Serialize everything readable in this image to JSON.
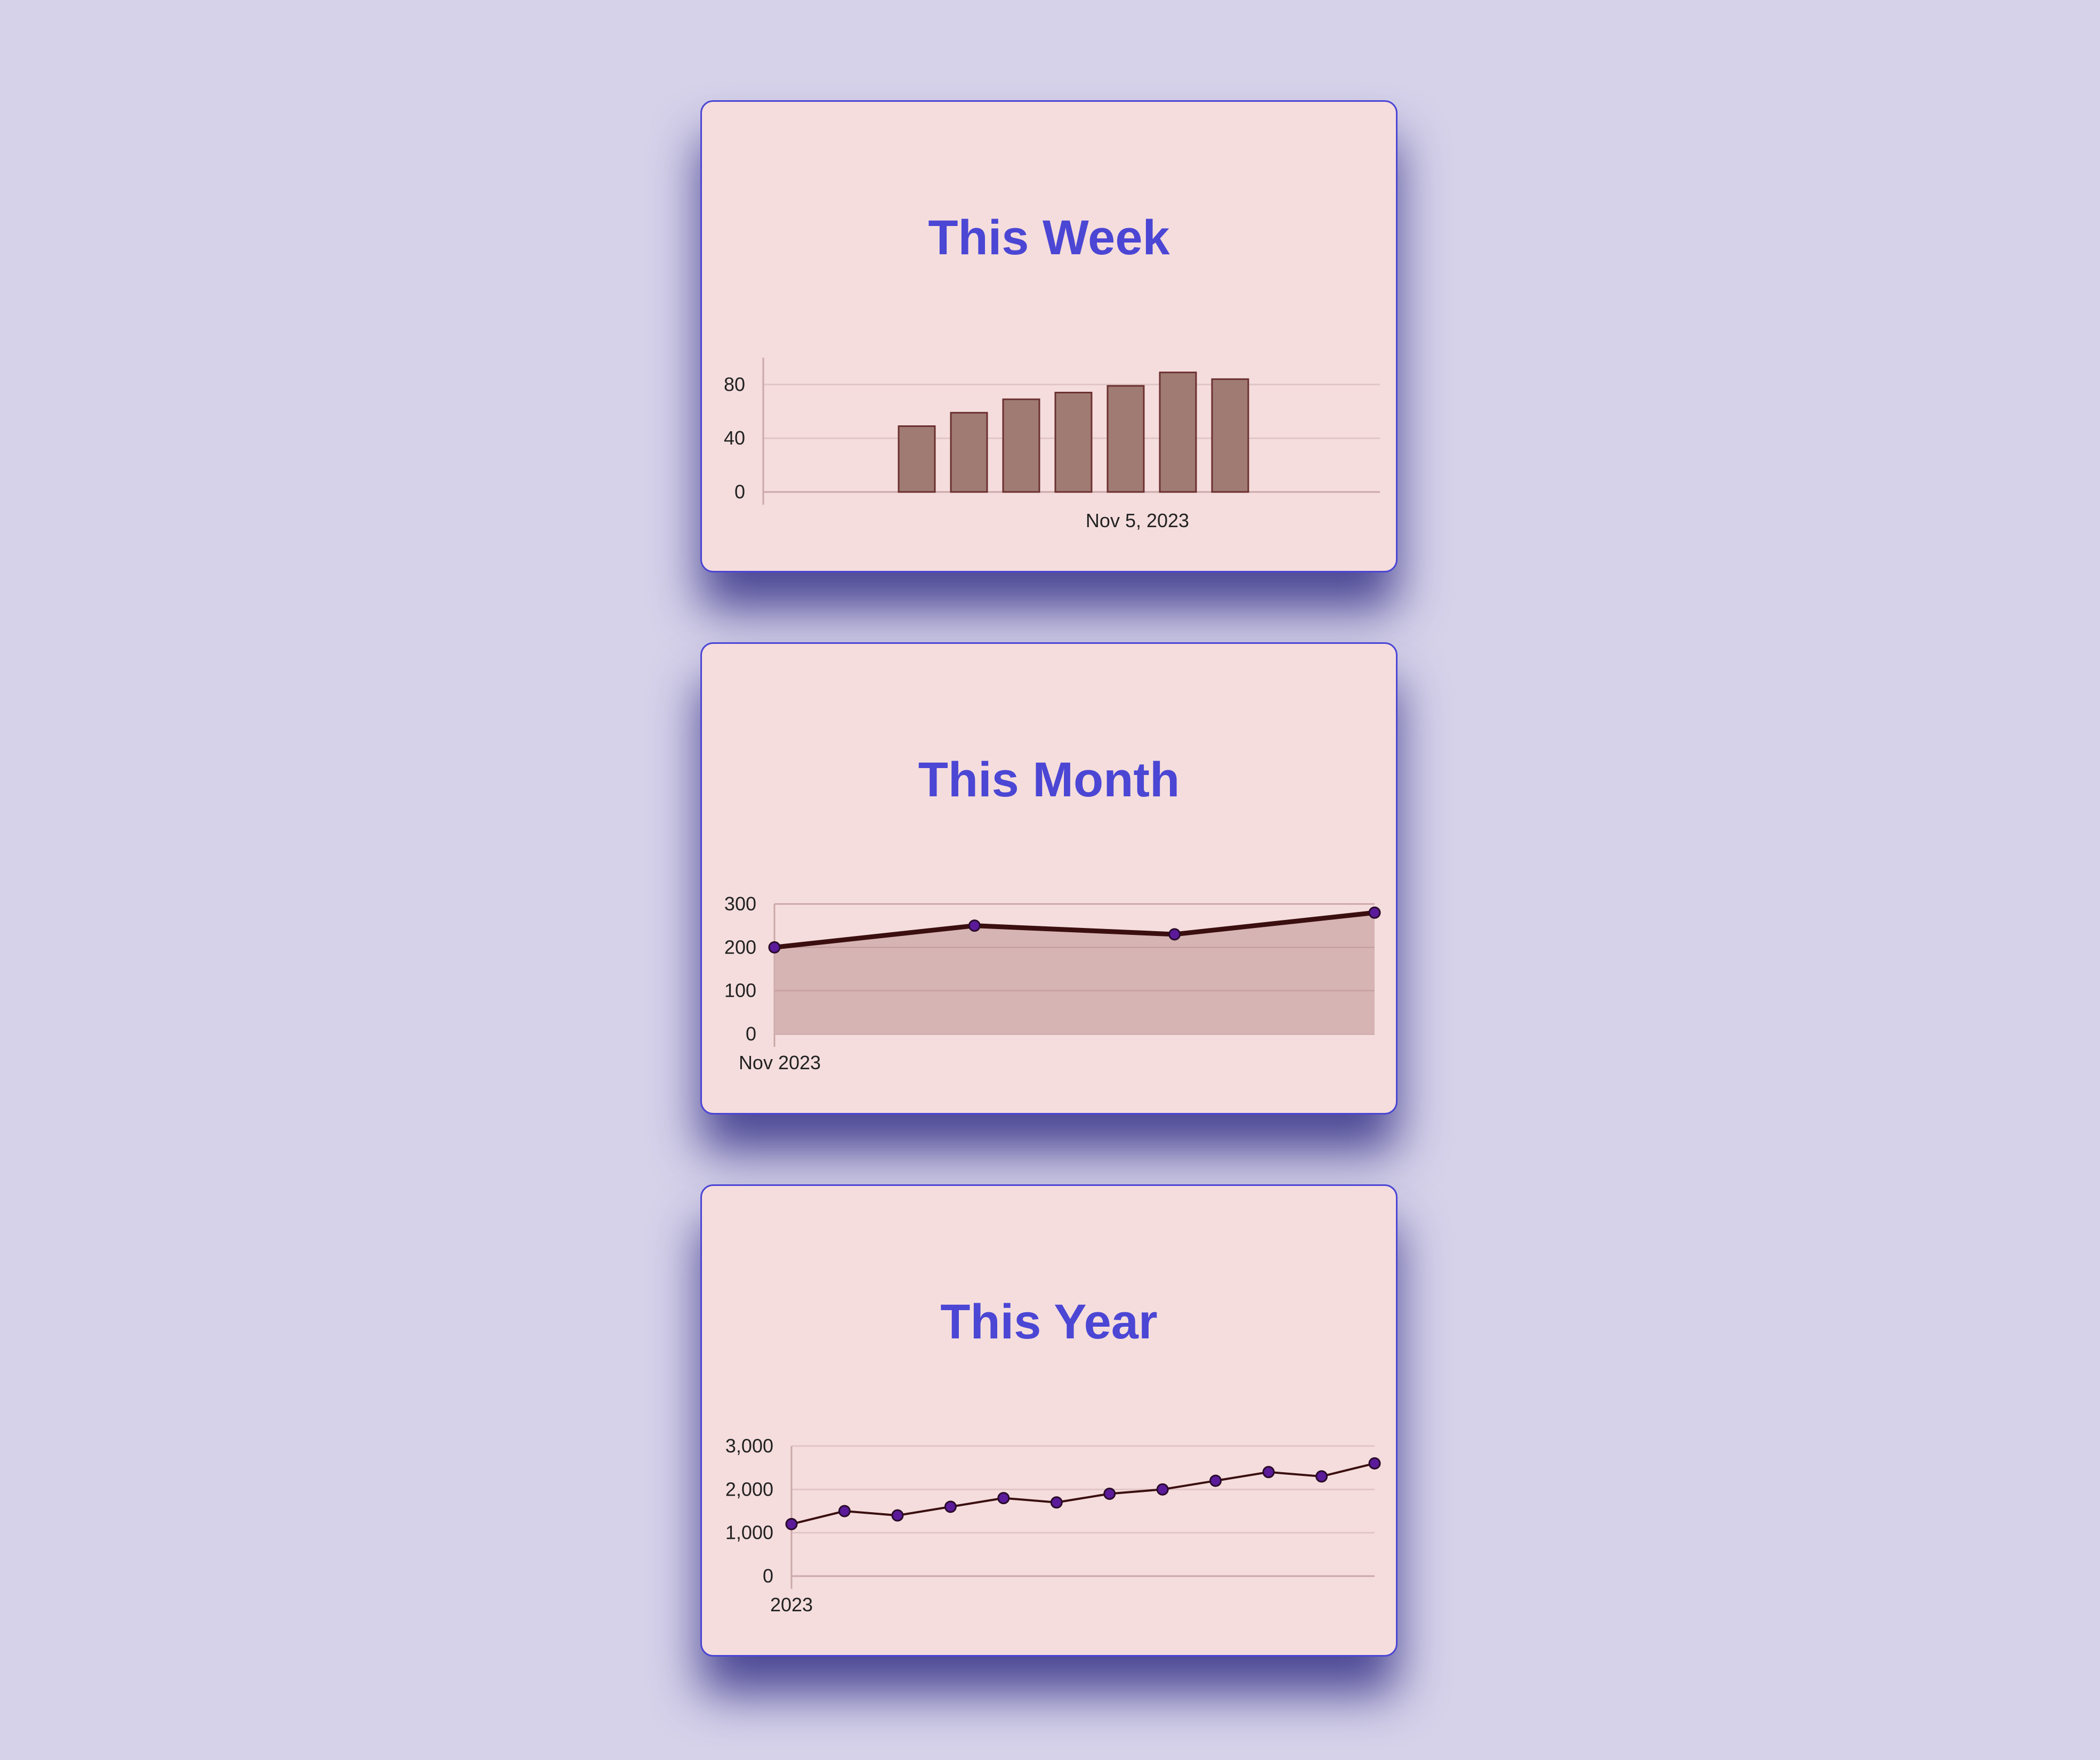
{
  "colors": {
    "background": "#d6d2ea",
    "card": "#f5dddd",
    "accent": "#4b46d4",
    "bar_fill": "#a07b74",
    "line": "#3b0f0f",
    "point": "#5b1a9a",
    "area_fill": "#d4b1b0",
    "grid": "#e2c5c5",
    "axis": "#caa8a8"
  },
  "chart_data": [
    {
      "title": "This Week",
      "type": "bar",
      "values": [
        49,
        59,
        69,
        74,
        79,
        89,
        84
      ],
      "ylim": [
        0,
        100
      ],
      "yticks": [
        "0",
        "40",
        "80"
      ],
      "ytick_values": [
        0,
        40,
        80
      ],
      "xtick_labels": [
        "Nov 5, 2023"
      ],
      "grid": true
    },
    {
      "title": "This Month",
      "type": "area",
      "values": [
        200,
        250,
        230,
        280
      ],
      "ylim": [
        0,
        300
      ],
      "yticks": [
        "0",
        "100",
        "200",
        "300"
      ],
      "ytick_values": [
        0,
        100,
        200,
        300
      ],
      "xtick_labels": [
        "Nov 2023"
      ],
      "grid": true
    },
    {
      "title": "This Year",
      "type": "line",
      "values": [
        1200,
        1500,
        1400,
        1600,
        1800,
        1700,
        1900,
        2000,
        2200,
        2400,
        2300,
        2600
      ],
      "ylim": [
        0,
        3000
      ],
      "yticks": [
        "0",
        "1,000",
        "2,000",
        "3,000"
      ],
      "ytick_values": [
        0,
        1000,
        2000,
        3000
      ],
      "xtick_labels": [
        "2023"
      ],
      "grid": true
    }
  ]
}
